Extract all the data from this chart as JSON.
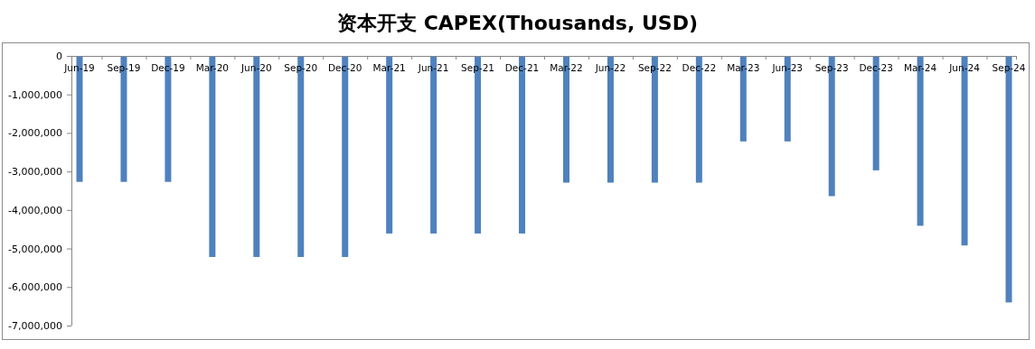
{
  "chart_data": {
    "type": "bar",
    "title": "资本开支 CAPEX(Thousands, USD)",
    "categories": [
      "Jun-19",
      "Sep-19",
      "Dec-19",
      "Mar-20",
      "Jun-20",
      "Sep-20",
      "Dec-20",
      "Mar-21",
      "Jun-21",
      "Sep-21",
      "Dec-21",
      "Mar-22",
      "Jun-22",
      "Sep-22",
      "Dec-22",
      "Mar-23",
      "Jun-23",
      "Sep-23",
      "Dec-23",
      "Mar-24",
      "Jun-24",
      "Sep-24"
    ],
    "values": [
      -3270000,
      -3270000,
      -3270000,
      -5220000,
      -5220000,
      -5220000,
      -5220000,
      -4610000,
      -4610000,
      -4610000,
      -4610000,
      -3290000,
      -3290000,
      -3290000,
      -3290000,
      -2220000,
      -2220000,
      -3640000,
      -2970000,
      -4410000,
      -4920000,
      -6400000
    ],
    "color": "#4f81bd",
    "ylim": [
      -7000000,
      0
    ],
    "yticks": [
      {
        "value": 0,
        "label": "0"
      },
      {
        "value": -1000000,
        "label": "-1,000,000"
      },
      {
        "value": -2000000,
        "label": "-2,000,000"
      },
      {
        "value": -3000000,
        "label": "-3,000,000"
      },
      {
        "value": -4000000,
        "label": "-4,000,000"
      },
      {
        "value": -5000000,
        "label": "-5,000,000"
      },
      {
        "value": -6000000,
        "label": "-6,000,000"
      },
      {
        "value": -7000000,
        "label": "-7,000,000"
      }
    ]
  }
}
